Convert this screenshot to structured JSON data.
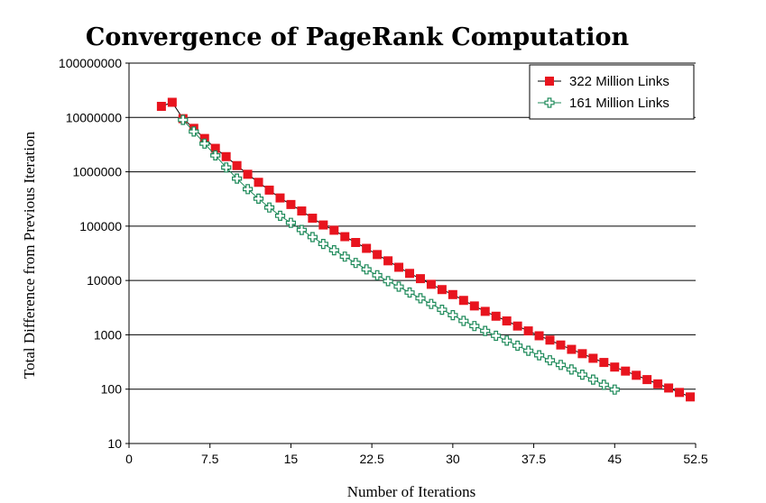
{
  "chart_data": {
    "type": "line",
    "title": "Convergence of PageRank Computation",
    "xlabel": "Number of Iterations",
    "ylabel": "Total Difference from Previous Iteration",
    "xlim": [
      0,
      52.5
    ],
    "ylim": [
      10,
      100000000
    ],
    "yscale": "log",
    "grid": "horizontal",
    "legend_position": "top-right",
    "x_ticks": [
      "0",
      "7.5",
      "15",
      "22.5",
      "30",
      "37.5",
      "45",
      "52.5"
    ],
    "y_ticks": [
      "10",
      "100",
      "1000",
      "10000",
      "100000",
      "1000000",
      "10000000",
      "100000000"
    ],
    "series": [
      {
        "name": "322 Million Links",
        "color": "#e8141e",
        "marker": "filled-square",
        "x": [
          3,
          4,
          5,
          6,
          7,
          8,
          9,
          10,
          11,
          12,
          13,
          14,
          15,
          16,
          17,
          18,
          19,
          20,
          21,
          22,
          23,
          24,
          25,
          26,
          27,
          28,
          29,
          30,
          31,
          32,
          33,
          34,
          35,
          36,
          37,
          38,
          39,
          40,
          41,
          42,
          43,
          44,
          45,
          46,
          47,
          48,
          49,
          50,
          51,
          52
        ],
        "y": [
          16000000,
          19000000,
          9500000,
          6300000,
          4100000,
          2700000,
          1900000,
          1300000,
          900000,
          640000,
          460000,
          330000,
          250000,
          190000,
          140000,
          105000,
          84000,
          64000,
          50000,
          39000,
          30000,
          23000,
          17500,
          13500,
          10800,
          8500,
          6800,
          5500,
          4300,
          3400,
          2700,
          2200,
          1800,
          1450,
          1180,
          960,
          800,
          650,
          540,
          450,
          370,
          310,
          255,
          215,
          180,
          150,
          125,
          105,
          87,
          72
        ]
      },
      {
        "name": "161 Million Links",
        "color": "#1e8a5a",
        "marker": "hollow-cross",
        "x": [
          5,
          6,
          7,
          8,
          9,
          10,
          11,
          12,
          13,
          14,
          15,
          16,
          17,
          18,
          19,
          20,
          21,
          22,
          23,
          24,
          25,
          26,
          27,
          28,
          29,
          30,
          31,
          32,
          33,
          34,
          35,
          36,
          37,
          38,
          39,
          40,
          41,
          42,
          43,
          44,
          45
        ],
        "y": [
          9000000,
          5500000,
          3300000,
          2000000,
          1200000,
          750000,
          480000,
          320000,
          220000,
          155000,
          115000,
          85000,
          63000,
          47000,
          36000,
          27500,
          21000,
          16000,
          12500,
          9700,
          7700,
          6000,
          4700,
          3700,
          2900,
          2300,
          1800,
          1450,
          1180,
          960,
          780,
          630,
          510,
          420,
          340,
          280,
          230,
          185,
          150,
          120,
          98
        ]
      }
    ]
  }
}
